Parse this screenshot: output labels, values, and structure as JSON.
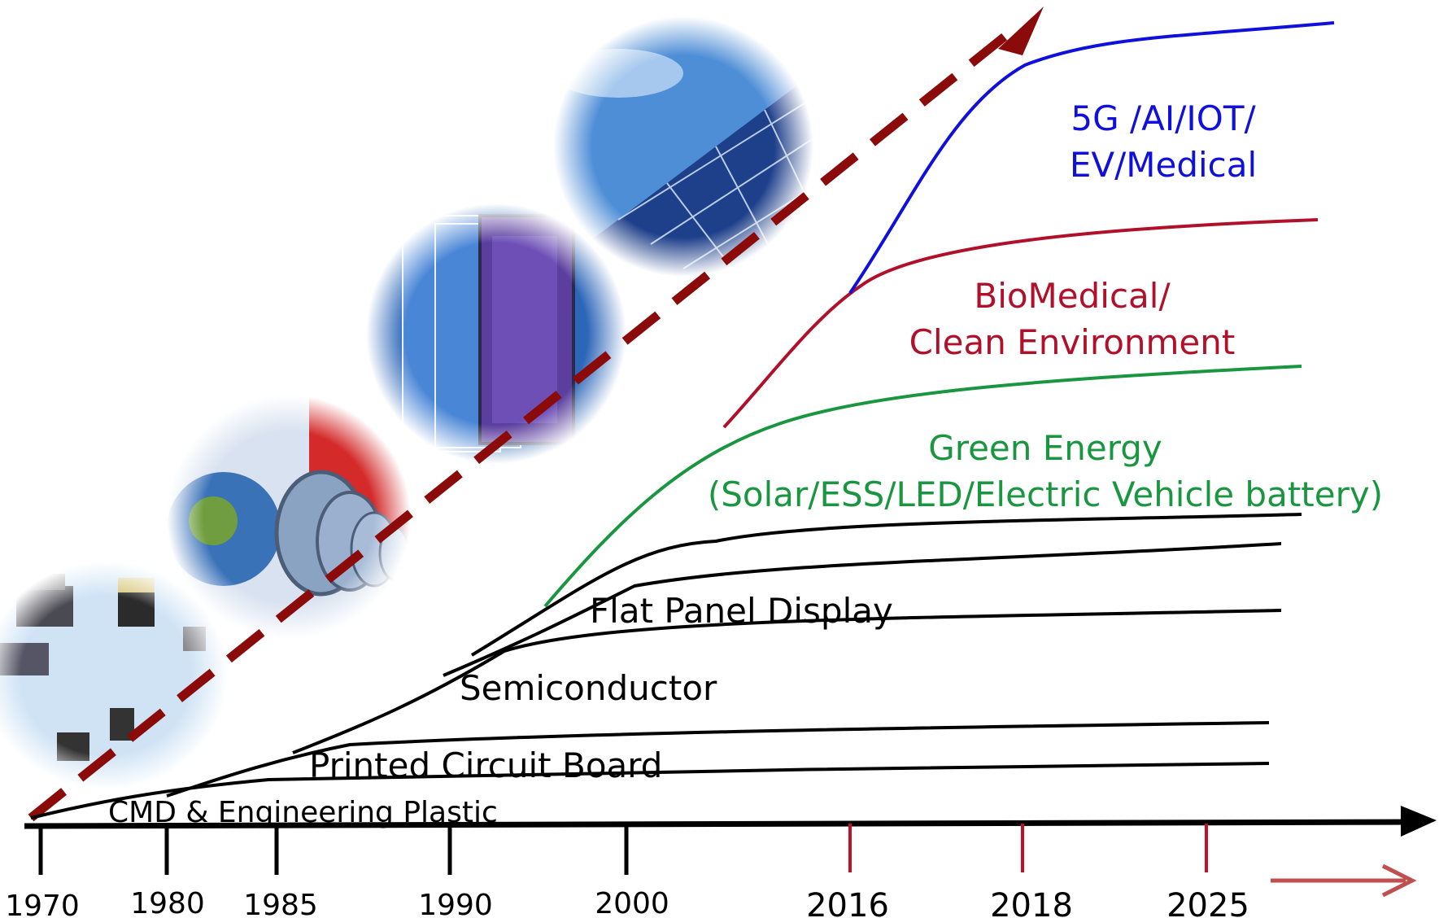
{
  "timeline": {
    "years": [
      "1970",
      "1980",
      "1985",
      "1990",
      "2000",
      "2016",
      "2018",
      "2025"
    ]
  },
  "stages": [
    {
      "id": "cmd",
      "label": "CMD & Engineering Plastic",
      "color": "#000000"
    },
    {
      "id": "pcb",
      "label": "Printed Circuit Board",
      "color": "#000000"
    },
    {
      "id": "semi",
      "label": "Semiconductor",
      "color": "#000000"
    },
    {
      "id": "fpd",
      "label": "Flat Panel Display",
      "color": "#000000"
    },
    {
      "id": "green",
      "label": "Green Energy",
      "label2": "(Solar/ESS/LED/Electric Vehicle battery)",
      "color": "#1a9641"
    },
    {
      "id": "bio",
      "label": "BioMedical/",
      "label2": "Clean Environment",
      "color": "#b0102a"
    },
    {
      "id": "fiveg",
      "label": "5G /AI/IOT/",
      "label2": "EV/Medical",
      "color": "#1010dd"
    }
  ],
  "colors": {
    "trend_arrow": "#8b0a0a",
    "axis": "#000000",
    "future_ticks": "#c0102a",
    "future_arrow": "#c05050"
  },
  "images": [
    "electronic-components",
    "silicon-wafers",
    "display-glass-panels",
    "solar-panels"
  ]
}
